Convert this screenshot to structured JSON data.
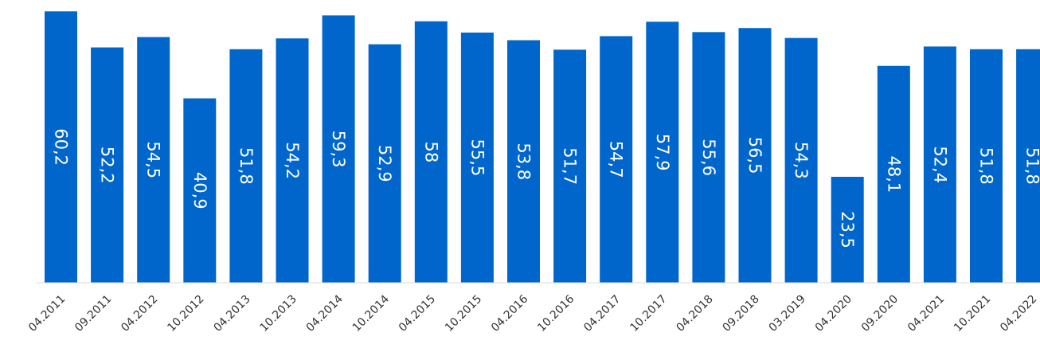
{
  "chart_data": {
    "type": "bar",
    "categories": [
      "04.2011",
      "09.2011",
      "04.2012",
      "10.2012",
      "04.2013",
      "10.2013",
      "04.2014",
      "10.2014",
      "04.2015",
      "10.2015",
      "04.2016",
      "10.2016",
      "04.2017",
      "10.2017",
      "04.2018",
      "09.2018",
      "03.2019",
      "04.2020",
      "09.2020",
      "04.2021",
      "10.2021",
      "04.2022"
    ],
    "values": [
      60.2,
      52.2,
      54.5,
      40.9,
      51.8,
      54.2,
      59.3,
      52.9,
      58,
      55.5,
      53.8,
      51.7,
      54.7,
      57.9,
      55.6,
      56.5,
      54.3,
      23.5,
      48.1,
      52.4,
      51.8,
      51.8
    ],
    "labels": [
      "60,2",
      "52,2",
      "54,5",
      "40,9",
      "51,8",
      "54,2",
      "59,3",
      "52,9",
      "58",
      "55,5",
      "53,8",
      "51,7",
      "54,7",
      "57,9",
      "55,6",
      "56,5",
      "54,3",
      "23,5",
      "48,1",
      "52,4",
      "51,8",
      "51,8"
    ],
    "title": "",
    "xlabel": "",
    "ylabel": "",
    "color": "#0066CC",
    "grid": false,
    "legend": false
  }
}
